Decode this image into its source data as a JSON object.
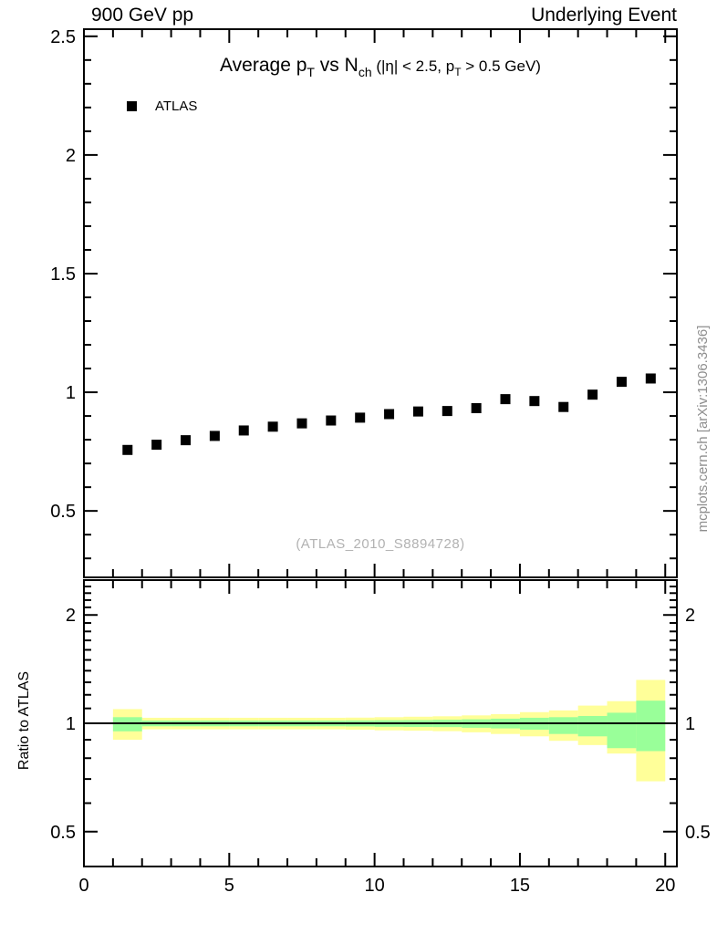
{
  "header": {
    "left": "900 GeV pp",
    "right": "Underlying Event"
  },
  "plot": {
    "title_segments": [
      {
        "t": "Average p",
        "s": "n"
      },
      {
        "t": "T",
        "s": "sub"
      },
      {
        "t": " vs N",
        "s": "n"
      },
      {
        "t": "ch",
        "s": "sub"
      },
      {
        "t": " (|η| < 2.5, p",
        "s": "sm"
      },
      {
        "t": "T",
        "s": "smsub"
      },
      {
        "t": " > 0.5 GeV)",
        "s": "sm"
      }
    ],
    "legend": {
      "label": "ATLAS",
      "marker": "filled-square",
      "color": "#000000"
    },
    "watermark": "(ATLAS_2010_S8894728)",
    "side_note": "mcplots.cern.ch [arXiv:1306.3436]"
  },
  "ratio": {
    "ylabel": "Ratio to ATLAS"
  },
  "colors": {
    "outer_band": "#ffff99",
    "inner_band": "#99ff99",
    "watermark": "#b2b2b2",
    "side_note": "#8e8e8e",
    "axis": "#000000"
  },
  "chart_data": [
    {
      "type": "scatter",
      "panel": "main",
      "title": "Average pT vs Nch (|eta| < 2.5, pT > 0.5 GeV)",
      "xlabel": "",
      "ylabel": "",
      "xlim": [
        0,
        20.4
      ],
      "ylim": [
        0.22,
        2.53
      ],
      "xticks_major": [
        0,
        5,
        10,
        15,
        20
      ],
      "xtick_minor_step": 1,
      "yticks_major": [
        0.5,
        1,
        1.5,
        2,
        2.5
      ],
      "ytick_minor_step": 0.1,
      "grid": false,
      "legend_position": "top-left",
      "series": [
        {
          "name": "ATLAS",
          "marker": "filled-square",
          "color": "#000000",
          "x": [
            1.5,
            2.5,
            3.5,
            4.5,
            5.5,
            6.5,
            7.5,
            8.5,
            9.5,
            10.5,
            11.5,
            12.5,
            13.5,
            14.5,
            15.5,
            16.5,
            17.5,
            18.5,
            19.5
          ],
          "y": [
            0.757,
            0.779,
            0.798,
            0.816,
            0.839,
            0.855,
            0.869,
            0.881,
            0.893,
            0.908,
            0.919,
            0.921,
            0.933,
            0.971,
            0.963,
            0.938,
            0.99,
            1.044,
            1.058
          ]
        }
      ]
    },
    {
      "type": "area",
      "panel": "ratio",
      "ylabel": "Ratio to ATLAS",
      "yscale": "log",
      "xlim": [
        0,
        20.4
      ],
      "ylim": [
        0.4,
        2.5
      ],
      "yticks_major": [
        0.5,
        1,
        2
      ],
      "ytick_minor_step": 0.1,
      "xticks_major": [
        0,
        5,
        10,
        15,
        20
      ],
      "xtick_minor_step": 1,
      "reference_line": 1,
      "band_colors": {
        "outer": "#ffff99",
        "inner": "#99ff99"
      },
      "bands": [
        {
          "x": [
            1,
            2
          ],
          "outer": [
            0.9,
            1.095
          ],
          "inner": [
            0.95,
            1.04
          ]
        },
        {
          "x": [
            2,
            3
          ],
          "outer": [
            0.962,
            1.036
          ],
          "inner": [
            0.981,
            1.018
          ]
        },
        {
          "x": [
            3,
            4
          ],
          "outer": [
            0.962,
            1.036
          ],
          "inner": [
            0.981,
            1.018
          ]
        },
        {
          "x": [
            4,
            5
          ],
          "outer": [
            0.962,
            1.036
          ],
          "inner": [
            0.981,
            1.018
          ]
        },
        {
          "x": [
            5,
            6
          ],
          "outer": [
            0.962,
            1.036
          ],
          "inner": [
            0.981,
            1.018
          ]
        },
        {
          "x": [
            6,
            7
          ],
          "outer": [
            0.962,
            1.036
          ],
          "inner": [
            0.981,
            1.018
          ]
        },
        {
          "x": [
            7,
            8
          ],
          "outer": [
            0.962,
            1.036
          ],
          "inner": [
            0.981,
            1.018
          ]
        },
        {
          "x": [
            8,
            9
          ],
          "outer": [
            0.962,
            1.036
          ],
          "inner": [
            0.981,
            1.018
          ]
        },
        {
          "x": [
            9,
            10
          ],
          "outer": [
            0.96,
            1.037
          ],
          "inner": [
            0.98,
            1.019
          ]
        },
        {
          "x": [
            10,
            11
          ],
          "outer": [
            0.956,
            1.04
          ],
          "inner": [
            0.978,
            1.02
          ]
        },
        {
          "x": [
            11,
            12
          ],
          "outer": [
            0.954,
            1.043
          ],
          "inner": [
            0.977,
            1.021
          ]
        },
        {
          "x": [
            12,
            13
          ],
          "outer": [
            0.951,
            1.046
          ],
          "inner": [
            0.976,
            1.023
          ]
        },
        {
          "x": [
            13,
            14
          ],
          "outer": [
            0.944,
            1.052
          ],
          "inner": [
            0.972,
            1.026
          ]
        },
        {
          "x": [
            14,
            15
          ],
          "outer": [
            0.934,
            1.06
          ],
          "inner": [
            0.968,
            1.03
          ]
        },
        {
          "x": [
            15,
            16
          ],
          "outer": [
            0.92,
            1.074
          ],
          "inner": [
            0.96,
            1.036
          ]
        },
        {
          "x": [
            16,
            17
          ],
          "outer": [
            0.894,
            1.086
          ],
          "inner": [
            0.934,
            1.04
          ]
        },
        {
          "x": [
            17,
            18
          ],
          "outer": [
            0.87,
            1.12
          ],
          "inner": [
            0.92,
            1.048
          ]
        },
        {
          "x": [
            18,
            19
          ],
          "outer": [
            0.824,
            1.152
          ],
          "inner": [
            0.853,
            1.07
          ]
        },
        {
          "x": [
            19,
            20
          ],
          "outer": [
            0.69,
            1.32
          ],
          "inner": [
            0.837,
            1.156
          ]
        }
      ]
    }
  ]
}
